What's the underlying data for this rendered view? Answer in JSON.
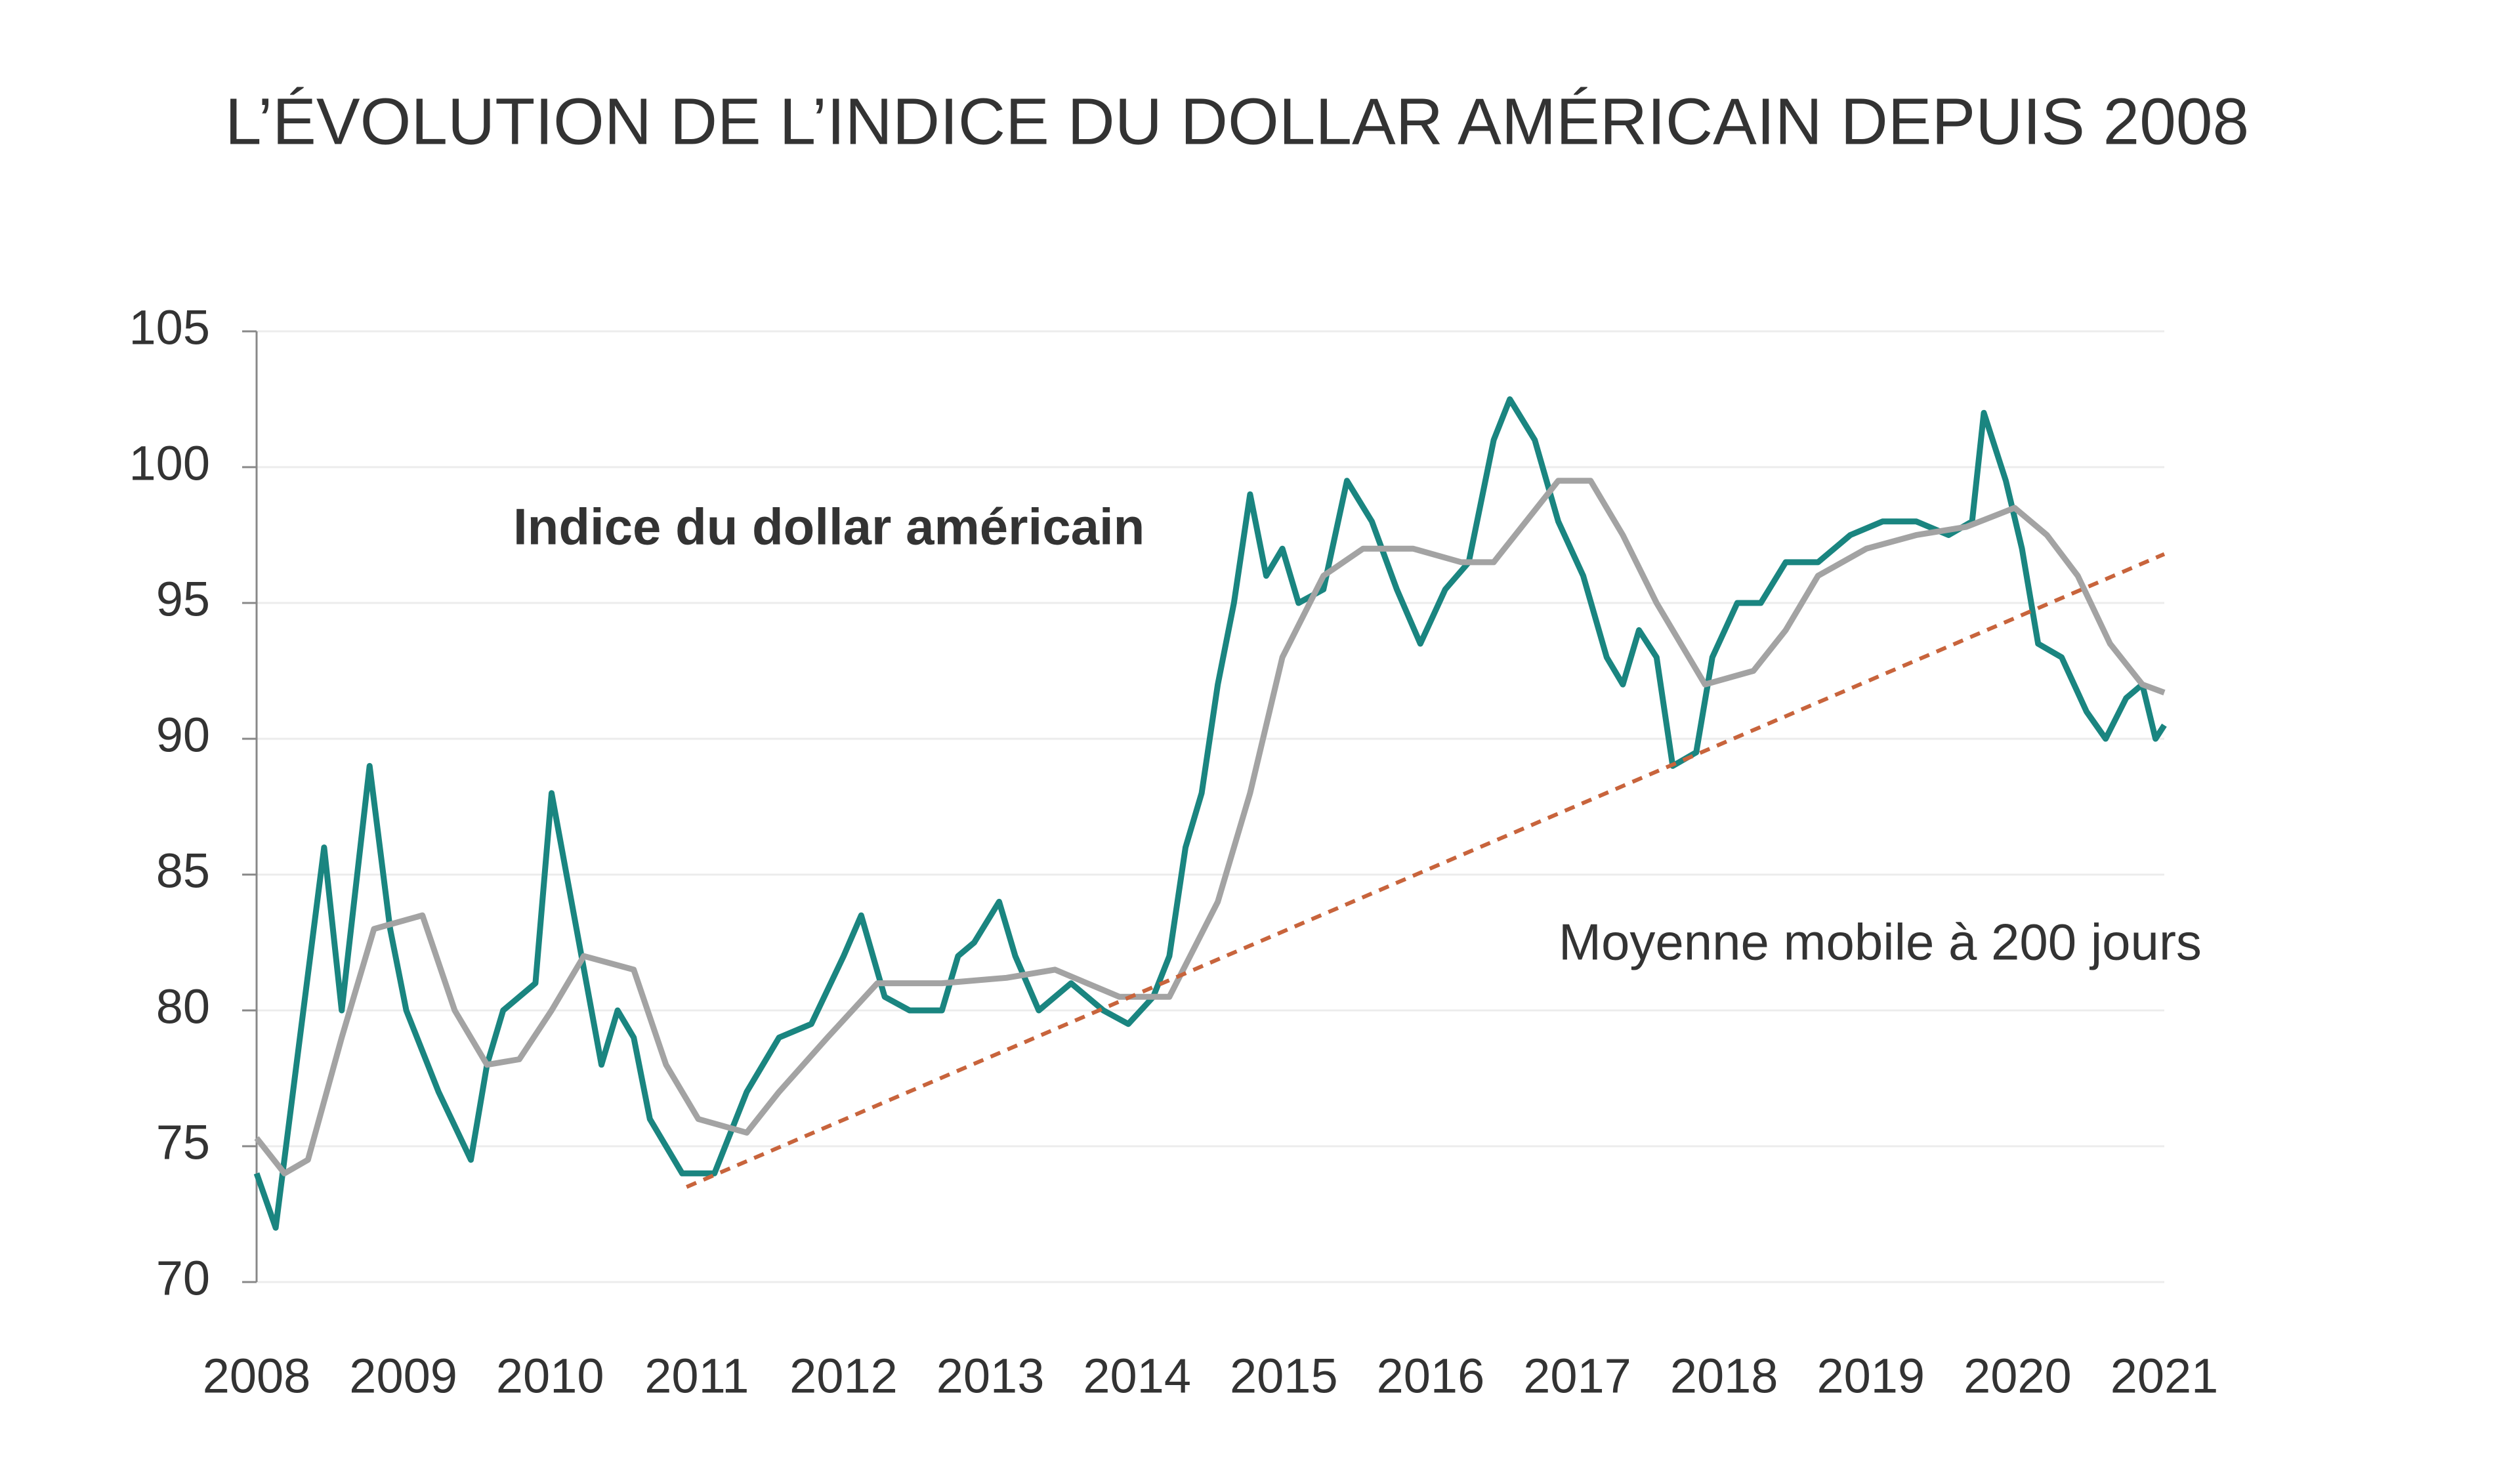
{
  "chart_data": {
    "type": "line",
    "title": "L’ÉVOLUTION DE L’INDICE DU DOLLAR AMÉRICAIN DEPUIS 2008",
    "xlim": [
      2008,
      2021
    ],
    "xticks": [
      2008,
      2009,
      2010,
      2011,
      2012,
      2013,
      2014,
      2015,
      2016,
      2017,
      2018,
      2019,
      2020,
      2021
    ],
    "ylim": [
      70,
      105
    ],
    "yticks": [
      70,
      75,
      80,
      85,
      90,
      95,
      100,
      105
    ],
    "grid": true,
    "series": [
      {
        "name": "Indice du dollar américain",
        "color": "#1a8580",
        "x": [
          2008.0,
          2008.13,
          2008.46,
          2008.58,
          2008.77,
          2008.91,
          2009.02,
          2009.24,
          2009.46,
          2009.57,
          2009.68,
          2009.9,
          2010.01,
          2010.18,
          2010.35,
          2010.46,
          2010.57,
          2010.68,
          2010.9,
          2011.12,
          2011.34,
          2011.56,
          2011.78,
          2012.0,
          2012.12,
          2012.28,
          2012.45,
          2012.67,
          2012.78,
          2012.89,
          2013.06,
          2013.17,
          2013.33,
          2013.55,
          2013.77,
          2013.94,
          2014.11,
          2014.22,
          2014.33,
          2014.44,
          2014.55,
          2014.66,
          2014.77,
          2014.88,
          2014.99,
          2015.1,
          2015.27,
          2015.43,
          2015.6,
          2015.77,
          2015.93,
          2016.1,
          2016.26,
          2016.43,
          2016.54,
          2016.71,
          2016.87,
          2017.04,
          2017.2,
          2017.31,
          2017.42,
          2017.54,
          2017.65,
          2017.81,
          2017.92,
          2018.09,
          2018.25,
          2018.42,
          2018.64,
          2018.86,
          2019.08,
          2019.31,
          2019.53,
          2019.69,
          2019.77,
          2019.92,
          2020.03,
          2020.14,
          2020.3,
          2020.47,
          2020.6,
          2020.74,
          2020.85,
          2020.94,
          2021.0
        ],
        "values": [
          74,
          72,
          86,
          80,
          89,
          83,
          80,
          77,
          74.5,
          78,
          80,
          81,
          88,
          83,
          78,
          80,
          79,
          76,
          74,
          74,
          77,
          79,
          79.5,
          82,
          83.5,
          80.5,
          80,
          80,
          82,
          82.5,
          84,
          82,
          80,
          81,
          80,
          79.5,
          80.5,
          82,
          86,
          88,
          92,
          95,
          99,
          96,
          97,
          95,
          95.5,
          99.5,
          98,
          95.5,
          93.5,
          95.5,
          96.5,
          101,
          102.5,
          101,
          98,
          96,
          93,
          92,
          94,
          93,
          89,
          89.5,
          93,
          95,
          95,
          96.5,
          96.5,
          97.5,
          98,
          98,
          97.5,
          98,
          102,
          99.5,
          97,
          93.5,
          93,
          91,
          90,
          91.5,
          92,
          90,
          90.5
        ]
      },
      {
        "name": "Moyenne mobile à 200 jours",
        "color": "#a3a3a3",
        "x": [
          2008.0,
          2008.19,
          2008.35,
          2008.58,
          2008.8,
          2009.13,
          2009.35,
          2009.57,
          2009.79,
          2010.01,
          2010.23,
          2010.57,
          2010.79,
          2011.01,
          2011.34,
          2011.56,
          2011.89,
          2012.23,
          2012.67,
          2013.11,
          2013.44,
          2013.88,
          2014.22,
          2014.55,
          2014.77,
          2014.99,
          2015.27,
          2015.54,
          2015.88,
          2016.21,
          2016.43,
          2016.65,
          2016.87,
          2017.09,
          2017.31,
          2017.54,
          2017.87,
          2018.2,
          2018.42,
          2018.64,
          2018.97,
          2019.31,
          2019.65,
          2019.98,
          2020.2,
          2020.41,
          2020.63,
          2020.85,
          2021.0
        ],
        "values": [
          75.3,
          74,
          74.5,
          79,
          83,
          83.5,
          80,
          78,
          78.2,
          80,
          82,
          81.5,
          78,
          76,
          75.5,
          77,
          79,
          81,
          81,
          81.2,
          81.5,
          80.5,
          80.5,
          84,
          88,
          93,
          96,
          97,
          97,
          96.5,
          96.5,
          98,
          99.5,
          99.5,
          97.5,
          95,
          92,
          92.5,
          94,
          96,
          97,
          97.5,
          97.8,
          98.5,
          97.5,
          96,
          93.5,
          92,
          91.7
        ]
      },
      {
        "color": "#c8643c",
        "dashed": true,
        "x": [
          2010.93,
          2021.0
        ],
        "values": [
          73.5,
          96.8
        ]
      }
    ]
  }
}
